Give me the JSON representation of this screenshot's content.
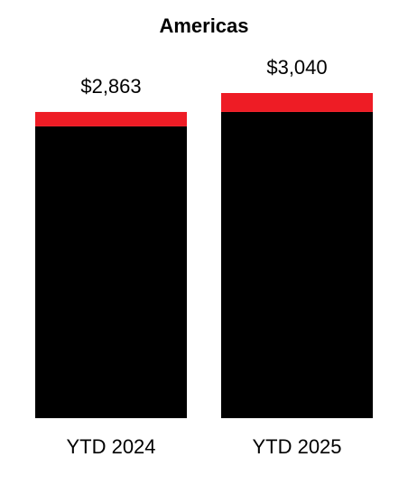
{
  "chart_data": {
    "type": "stacked_bar",
    "title": "Americas",
    "categories": [
      "YTD 2024",
      "YTD 2025"
    ],
    "series": [
      {
        "color": "#000000",
        "values": [
          2728,
          2863
        ]
      },
      {
        "color": "#ee1c25",
        "values": [
          135,
          177
        ]
      }
    ],
    "totals": [
      2863,
      3040
    ],
    "total_labels": [
      "$2,863",
      "$3,040"
    ]
  }
}
